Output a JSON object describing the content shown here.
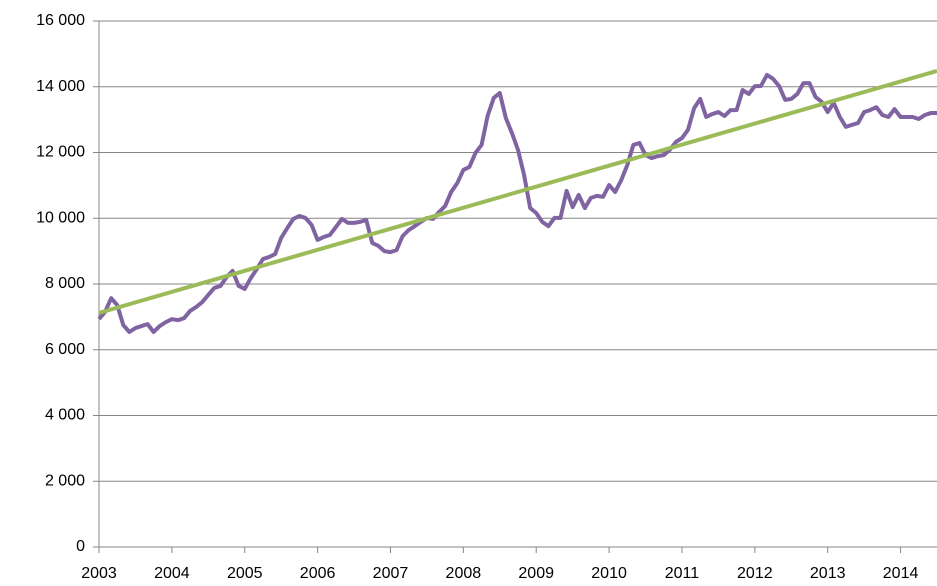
{
  "chart_data": {
    "type": "line",
    "xlim": [
      2003,
      2014.5
    ],
    "xticks": [
      2003,
      2004,
      2005,
      2006,
      2007,
      2008,
      2009,
      2010,
      2011,
      2012,
      2013,
      2014
    ],
    "ylim": [
      0,
      16000
    ],
    "yticks": [
      0,
      {
        "value": 2000,
        "label": "2 000"
      },
      {
        "value": 4000,
        "label": "4 000"
      },
      {
        "value": 6000,
        "label": "6 000"
      },
      {
        "value": 8000,
        "label": "8 000"
      },
      {
        "value": 10000,
        "label": "10 000"
      },
      {
        "value": 12000,
        "label": "12 000"
      },
      {
        "value": 14000,
        "label": "14 000"
      },
      {
        "value": 16000,
        "label": "16 000"
      }
    ],
    "grid": true,
    "series": [
      {
        "color": "#8064a2",
        "x": [
          2003,
          2003.083,
          2003.167,
          2003.25,
          2003.333,
          2003.417,
          2003.5,
          2003.583,
          2003.667,
          2003.75,
          2003.833,
          2003.917,
          2004,
          2004.083,
          2004.167,
          2004.25,
          2004.333,
          2004.417,
          2004.5,
          2004.583,
          2004.667,
          2004.75,
          2004.833,
          2004.917,
          2005,
          2005.083,
          2005.167,
          2005.25,
          2005.333,
          2005.417,
          2005.5,
          2005.583,
          2005.667,
          2005.75,
          2005.833,
          2005.917,
          2006,
          2006.083,
          2006.167,
          2006.25,
          2006.333,
          2006.417,
          2006.5,
          2006.583,
          2006.667,
          2006.75,
          2006.833,
          2006.917,
          2007,
          2007.083,
          2007.167,
          2007.25,
          2007.333,
          2007.417,
          2007.5,
          2007.583,
          2007.667,
          2007.75,
          2007.833,
          2007.917,
          2008,
          2008.083,
          2008.167,
          2008.25,
          2008.333,
          2008.417,
          2008.5,
          2008.583,
          2008.667,
          2008.75,
          2008.833,
          2008.917,
          2009,
          2009.083,
          2009.167,
          2009.25,
          2009.333,
          2009.417,
          2009.5,
          2009.583,
          2009.667,
          2009.75,
          2009.833,
          2009.917,
          2010,
          2010.083,
          2010.167,
          2010.25,
          2010.333,
          2010.417,
          2010.5,
          2010.583,
          2010.667,
          2010.75,
          2010.833,
          2010.917,
          2011,
          2011.083,
          2011.167,
          2011.25,
          2011.333,
          2011.417,
          2011.5,
          2011.583,
          2011.667,
          2011.75,
          2011.833,
          2011.917,
          2012,
          2012.083,
          2012.167,
          2012.25,
          2012.333,
          2012.417,
          2012.5,
          2012.583,
          2012.667,
          2012.75,
          2012.833,
          2012.917,
          2013,
          2013.083,
          2013.167,
          2013.25,
          2013.333,
          2013.417,
          2013.5,
          2013.583,
          2013.667,
          2013.75,
          2013.833,
          2013.917,
          2014,
          2014.083,
          2014.167,
          2014.25,
          2014.333,
          2014.417,
          2014.5
        ],
        "values": [
          6935,
          7150,
          7570,
          7360,
          6750,
          6540,
          6660,
          6720,
          6780,
          6540,
          6720,
          6840,
          6930,
          6900,
          6960,
          7180,
          7300,
          7450,
          7670,
          7880,
          7940,
          8210,
          8400,
          7940,
          7850,
          8180,
          8460,
          8760,
          8820,
          8910,
          9400,
          9700,
          9980,
          10070,
          10010,
          9800,
          9340,
          9430,
          9490,
          9730,
          9980,
          9860,
          9860,
          9890,
          9950,
          9250,
          9160,
          9000,
          8970,
          9030,
          9460,
          9640,
          9760,
          9890,
          10010,
          9980,
          10190,
          10370,
          10800,
          11070,
          11470,
          11560,
          11990,
          12230,
          13110,
          13660,
          13810,
          13050,
          12590,
          12080,
          11320,
          10310,
          10160,
          9890,
          9760,
          10010,
          10010,
          10830,
          10340,
          10710,
          10310,
          10620,
          10680,
          10650,
          11010,
          10800,
          11160,
          11620,
          12230,
          12290,
          11920,
          11830,
          11890,
          11920,
          12080,
          12320,
          12440,
          12690,
          13350,
          13630,
          13080,
          13170,
          13230,
          13110,
          13290,
          13290,
          13900,
          13780,
          14020,
          14020,
          14360,
          14240,
          14020,
          13600,
          13630,
          13780,
          14110,
          14110,
          13690,
          13540,
          13230,
          13510,
          13080,
          12780,
          12840,
          12900,
          13230,
          13290,
          13380,
          13140,
          13080,
          13320,
          13080,
          13080,
          13080,
          13020,
          13140,
          13200,
          13200
        ]
      },
      {
        "color": "#9bbb59",
        "x": [
          2003,
          2014.5
        ],
        "values": [
          7120,
          14480
        ]
      }
    ]
  }
}
